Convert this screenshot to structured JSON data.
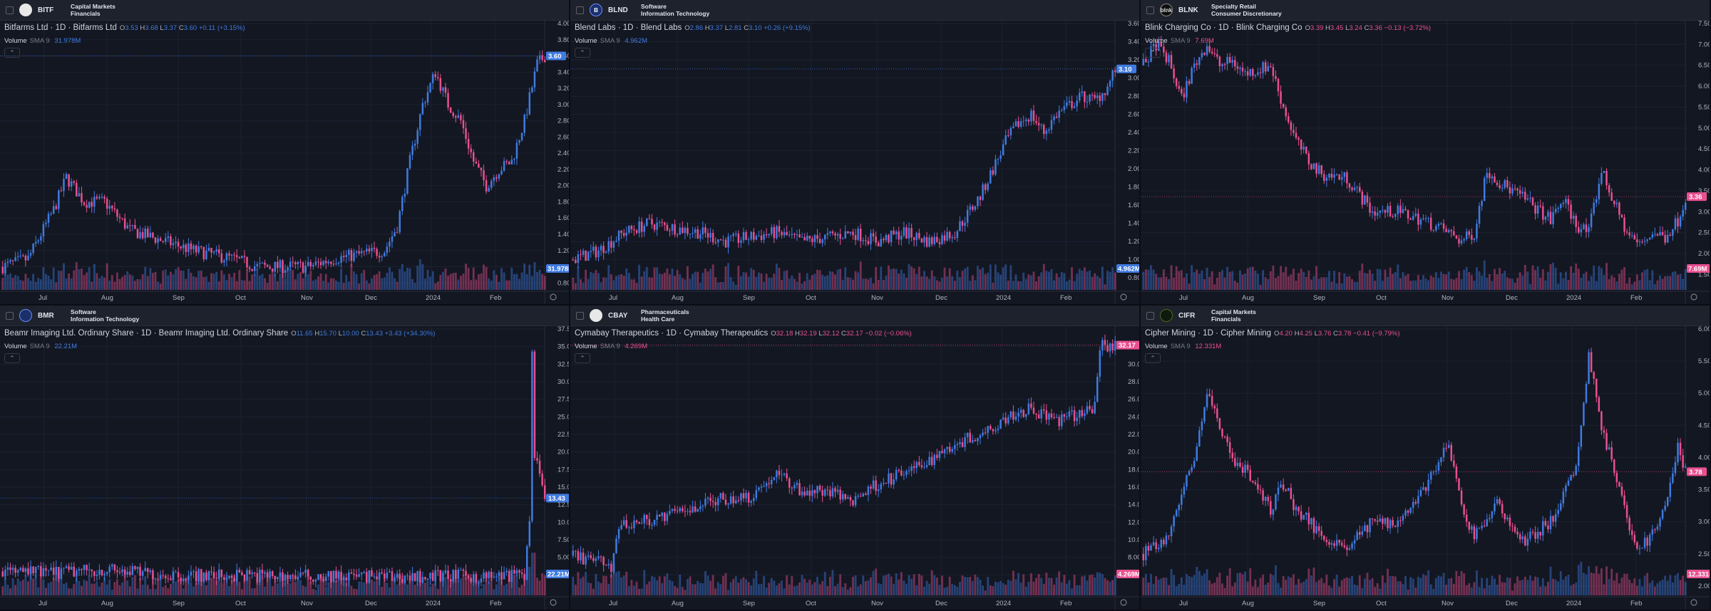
{
  "colors": {
    "up": "#3f7be0",
    "down": "#e9508f",
    "background": "#131722",
    "header": "#1e222d",
    "grid": "#1c2130"
  },
  "panels": [
    {
      "ticker": "BITF",
      "logo": "",
      "logo_style": "light",
      "sector1": "Capital Markets",
      "sector2": "Financials",
      "title": "Bitfarms Ltd · 1D · Bitfarms Ltd",
      "o": "3.53",
      "h": "3.68",
      "l": "3.37",
      "c": "3.60",
      "chg": "+0.11 (+3.15%)",
      "dir": "up",
      "volume_label": "Volume",
      "sma_label": "SMA 9",
      "vol_value": "31.978M",
      "price_tag": "3.60",
      "vol_tag": "31.978M",
      "y_ticks": [
        "4.00",
        "3.80",
        "3.60",
        "3.40",
        "3.20",
        "3.00",
        "2.80",
        "2.60",
        "2.40",
        "2.20",
        "2.00",
        "1.80",
        "1.60",
        "1.40",
        "1.20",
        "1.00",
        "0.80"
      ],
      "x_ticks": [
        "Jul",
        "Aug",
        "Sep",
        "Oct",
        "Nov",
        "Dec",
        "2024",
        "Feb"
      ],
      "ymin": 0.75,
      "ymax": 4.0,
      "last": 3.6,
      "path": [
        [
          0,
          1.0
        ],
        [
          10,
          1.1
        ],
        [
          20,
          1.7
        ],
        [
          25,
          2.1
        ],
        [
          32,
          1.8
        ],
        [
          40,
          1.8
        ],
        [
          50,
          1.45
        ],
        [
          60,
          1.35
        ],
        [
          75,
          1.2
        ],
        [
          90,
          1.1
        ],
        [
          100,
          1.0
        ],
        [
          110,
          1.0
        ],
        [
          120,
          1.0
        ],
        [
          130,
          1.1
        ],
        [
          140,
          1.15
        ],
        [
          150,
          1.2
        ],
        [
          155,
          1.5
        ],
        [
          160,
          2.3
        ],
        [
          165,
          3.0
        ],
        [
          170,
          3.4
        ],
        [
          175,
          3.0
        ],
        [
          180,
          2.8
        ],
        [
          185,
          2.3
        ],
        [
          190,
          2.0
        ],
        [
          195,
          2.2
        ],
        [
          200,
          2.3
        ],
        [
          205,
          2.8
        ],
        [
          210,
          3.5
        ],
        [
          213,
          3.6
        ]
      ]
    },
    {
      "ticker": "BLND",
      "logo": "B",
      "logo_style": "blue",
      "sector1": "Software",
      "sector2": "Information Technology",
      "title": "Blend Labs · 1D · Blend Labs",
      "o": "2.86",
      "h": "3.37",
      "l": "2.81",
      "c": "3.10",
      "chg": "+0.26 (+9.15%)",
      "dir": "up",
      "volume_label": "Volume",
      "sma_label": "SMA 9",
      "vol_value": "4.962M",
      "price_tag": "3.10",
      "vol_tag": "4.962M",
      "y_ticks": [
        "3.60",
        "3.40",
        "3.20",
        "3.00",
        "2.80",
        "2.60",
        "2.40",
        "2.20",
        "2.00",
        "1.80",
        "1.60",
        "1.40",
        "1.20",
        "1.00",
        "0.80"
      ],
      "x_ticks": [
        "Jul",
        "Aug",
        "Sep",
        "Oct",
        "Nov",
        "Dec",
        "2024",
        "Feb"
      ],
      "ymin": 0.7,
      "ymax": 3.6,
      "last": 3.1,
      "path": [
        [
          0,
          1.0
        ],
        [
          10,
          1.1
        ],
        [
          20,
          1.3
        ],
        [
          30,
          1.4
        ],
        [
          40,
          1.35
        ],
        [
          50,
          1.3
        ],
        [
          60,
          1.2
        ],
        [
          70,
          1.25
        ],
        [
          80,
          1.3
        ],
        [
          90,
          1.2
        ],
        [
          100,
          1.25
        ],
        [
          110,
          1.3
        ],
        [
          120,
          1.2
        ],
        [
          130,
          1.3
        ],
        [
          140,
          1.2
        ],
        [
          150,
          1.3
        ],
        [
          160,
          1.7
        ],
        [
          165,
          2.0
        ],
        [
          170,
          2.3
        ],
        [
          175,
          2.5
        ],
        [
          180,
          2.6
        ],
        [
          185,
          2.4
        ],
        [
          190,
          2.6
        ],
        [
          195,
          2.7
        ],
        [
          200,
          2.8
        ],
        [
          205,
          2.75
        ],
        [
          210,
          2.9
        ],
        [
          213,
          3.1
        ]
      ]
    },
    {
      "ticker": "BLNK",
      "logo": "blnk",
      "logo_style": "dark",
      "sector1": "Specialty Retail",
      "sector2": "Consumer Discretionary",
      "title": "Blink Charging Co · 1D · Blink Charging Co",
      "o": "3.39",
      "h": "3.45",
      "l": "3.24",
      "c": "3.36",
      "chg": "−0.13 (−3.72%)",
      "dir": "down",
      "volume_label": "Volume",
      "sma_label": "SMA 9",
      "vol_value": "7.69M",
      "price_tag": "3.36",
      "vol_tag": "7.69M",
      "y_ticks": [
        "7.50",
        "7.00",
        "6.50",
        "6.00",
        "5.50",
        "5.00",
        "4.50",
        "4.00",
        "3.50",
        "3.00",
        "2.50",
        "2.00",
        "1.50"
      ],
      "x_ticks": [
        "Jul",
        "Aug",
        "Sep",
        "Oct",
        "Nov",
        "Dec",
        "2024",
        "Feb"
      ],
      "ymin": 1.2,
      "ymax": 7.5,
      "last": 3.36,
      "path": [
        [
          0,
          6.5
        ],
        [
          5,
          7.0
        ],
        [
          10,
          6.6
        ],
        [
          15,
          5.7
        ],
        [
          20,
          6.5
        ],
        [
          25,
          7.0
        ],
        [
          30,
          6.5
        ],
        [
          35,
          6.6
        ],
        [
          40,
          6.3
        ],
        [
          45,
          6.4
        ],
        [
          50,
          6.5
        ],
        [
          55,
          5.5
        ],
        [
          60,
          4.7
        ],
        [
          65,
          4.2
        ],
        [
          70,
          3.9
        ],
        [
          80,
          3.8
        ],
        [
          90,
          3.0
        ],
        [
          100,
          3.0
        ],
        [
          110,
          2.8
        ],
        [
          120,
          2.5
        ],
        [
          125,
          2.3
        ],
        [
          130,
          2.5
        ],
        [
          135,
          4.0
        ],
        [
          140,
          3.7
        ],
        [
          150,
          3.3
        ],
        [
          160,
          2.8
        ],
        [
          165,
          3.3
        ],
        [
          170,
          2.7
        ],
        [
          175,
          2.5
        ],
        [
          180,
          4.0
        ],
        [
          185,
          3.2
        ],
        [
          190,
          2.5
        ],
        [
          195,
          2.2
        ],
        [
          200,
          2.5
        ],
        [
          205,
          2.4
        ],
        [
          210,
          2.8
        ],
        [
          213,
          3.36
        ]
      ]
    },
    {
      "ticker": "BMR",
      "logo": "",
      "logo_style": "blue",
      "sector1": "Software",
      "sector2": "Information Technology",
      "title": "Beamr Imaging Ltd. Ordinary Share · 1D · Beamr Imaging Ltd. Ordinary Share",
      "o": "11.65",
      "h": "15.70",
      "l": "10.00",
      "c": "13.43",
      "chg": "+3.43 (+34.30%)",
      "dir": "up",
      "volume_label": "Volume",
      "sma_label": "SMA 9",
      "vol_value": "22.21M",
      "price_tag": "13.43",
      "vol_tag": "22.21M",
      "y_ticks": [
        "37.50",
        "35.00",
        "32.50",
        "30.00",
        "27.50",
        "25.00",
        "22.50",
        "20.00",
        "17.50",
        "15.00",
        "12.50",
        "10.00",
        "7.50",
        "5.00",
        "2.50"
      ],
      "x_ticks": [
        "Jul",
        "Aug",
        "Sep",
        "Oct",
        "Nov",
        "Dec",
        "2024",
        "Feb"
      ],
      "ymin": 0,
      "ymax": 37.5,
      "last": 13.43,
      "path": [
        [
          0,
          3.0
        ],
        [
          20,
          2.8
        ],
        [
          40,
          3.2
        ],
        [
          60,
          2.6
        ],
        [
          80,
          2.4
        ],
        [
          100,
          2.4
        ],
        [
          120,
          2.3
        ],
        [
          140,
          2.3
        ],
        [
          160,
          2.2
        ],
        [
          175,
          2.4
        ],
        [
          190,
          2.2
        ],
        [
          205,
          2.6
        ],
        [
          207,
          10.0
        ],
        [
          208,
          34.0
        ],
        [
          209,
          20.0
        ],
        [
          211,
          16.0
        ],
        [
          213,
          13.43
        ]
      ]
    },
    {
      "ticker": "CBAY",
      "logo": "",
      "logo_style": "light",
      "sector1": "Pharmaceuticals",
      "sector2": "Health Care",
      "title": "Cymabay Therapeutics · 1D · Cymabay Therapeutics",
      "o": "32.18",
      "h": "32.19",
      "l": "32.12",
      "c": "32.17",
      "chg": "−0.02 (−0.06%)",
      "dir": "down",
      "volume_label": "Volume",
      "sma_label": "SMA 9",
      "vol_value": "4.269M",
      "price_tag": "32.17",
      "vol_tag": "4.269M",
      "y_ticks": [
        "32.00",
        "30.00",
        "28.00",
        "26.00",
        "24.00",
        "22.00",
        "20.00",
        "18.00",
        "16.00",
        "14.00",
        "12.00",
        "10.00",
        "8.00",
        "6.00"
      ],
      "x_ticks": [
        "Jul",
        "Aug",
        "Sep",
        "Oct",
        "Nov",
        "Dec",
        "2024",
        "Feb"
      ],
      "ymin": 4.0,
      "ymax": 34.0,
      "last": 32.17,
      "path": [
        [
          0,
          8.2
        ],
        [
          10,
          7.5
        ],
        [
          15,
          7.0
        ],
        [
          18,
          11.5
        ],
        [
          25,
          12.0
        ],
        [
          35,
          12.5
        ],
        [
          45,
          13.5
        ],
        [
          55,
          14.5
        ],
        [
          70,
          15.0
        ],
        [
          80,
          17.5
        ],
        [
          90,
          15.5
        ],
        [
          100,
          15.5
        ],
        [
          110,
          14.5
        ],
        [
          120,
          16.5
        ],
        [
          130,
          17.5
        ],
        [
          140,
          19.0
        ],
        [
          150,
          21.0
        ],
        [
          160,
          22.0
        ],
        [
          170,
          24.0
        ],
        [
          180,
          25.0
        ],
        [
          190,
          23.5
        ],
        [
          200,
          24.5
        ],
        [
          205,
          25.0
        ],
        [
          207,
          32.2
        ],
        [
          213,
          32.17
        ]
      ]
    },
    {
      "ticker": "CIFR",
      "logo": "",
      "logo_style": "green",
      "sector1": "Capital Markets",
      "sector2": "Financials",
      "title": "Cipher Mining · 1D · Cipher Mining",
      "o": "4.20",
      "h": "4.25",
      "l": "3.76",
      "c": "3.78",
      "chg": "−0.41 (−9.79%)",
      "dir": "down",
      "volume_label": "Volume",
      "sma_label": "SMA 9",
      "vol_value": "12.331M",
      "price_tag": "3.78",
      "vol_tag": "12.331M",
      "y_ticks": [
        "6.00",
        "5.50",
        "5.00",
        "4.50",
        "4.00",
        "3.50",
        "3.00",
        "2.50",
        "2.00"
      ],
      "x_ticks": [
        "Jul",
        "Aug",
        "Sep",
        "Oct",
        "Nov",
        "Dec",
        "2024",
        "Feb"
      ],
      "ymin": 1.9,
      "ymax": 6.0,
      "last": 3.78,
      "path": [
        [
          0,
          2.5
        ],
        [
          10,
          2.8
        ],
        [
          20,
          4.0
        ],
        [
          25,
          5.0
        ],
        [
          30,
          4.5
        ],
        [
          35,
          4.0
        ],
        [
          40,
          3.8
        ],
        [
          45,
          3.5
        ],
        [
          50,
          3.2
        ],
        [
          55,
          3.6
        ],
        [
          60,
          3.2
        ],
        [
          65,
          3.0
        ],
        [
          70,
          2.8
        ],
        [
          80,
          2.6
        ],
        [
          90,
          3.0
        ],
        [
          100,
          3.0
        ],
        [
          110,
          3.5
        ],
        [
          120,
          4.2
        ],
        [
          125,
          3.2
        ],
        [
          130,
          2.8
        ],
        [
          140,
          3.3
        ],
        [
          145,
          2.9
        ],
        [
          150,
          2.7
        ],
        [
          160,
          3.0
        ],
        [
          170,
          3.8
        ],
        [
          175,
          5.6
        ],
        [
          180,
          4.5
        ],
        [
          185,
          3.8
        ],
        [
          190,
          3.0
        ],
        [
          195,
          2.6
        ],
        [
          200,
          2.8
        ],
        [
          205,
          3.2
        ],
        [
          210,
          4.2
        ],
        [
          213,
          3.78
        ]
      ]
    }
  ]
}
